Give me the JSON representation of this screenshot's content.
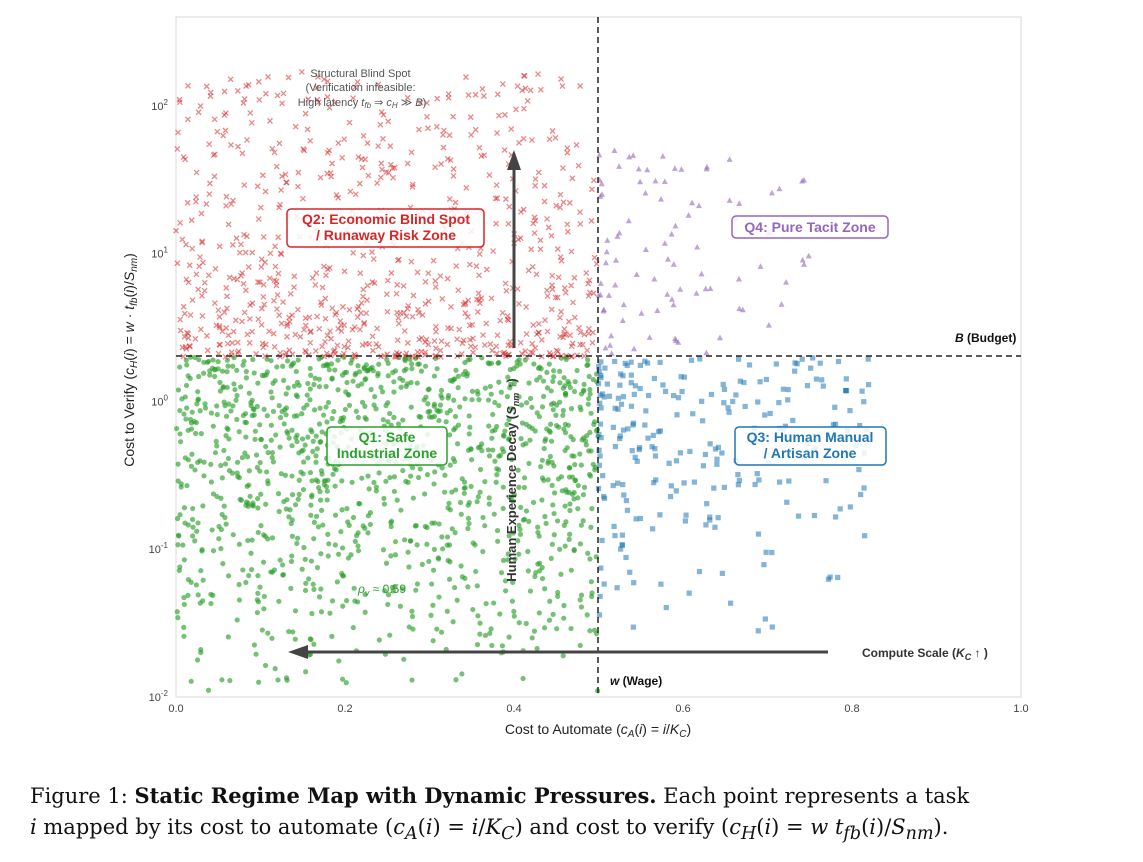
{
  "chart_data": {
    "type": "scatter",
    "xscale": "linear",
    "yscale": "log",
    "xlim": [
      0.0,
      1.0
    ],
    "ylim": [
      0.01,
      400
    ],
    "xlabel": "Cost to Automate (c_A(i) = i/K_C)",
    "ylabel": "Cost to Verify (c_H(i) = w · t_fb(i)/S_nm)",
    "x_ticks": [
      "0.0",
      "0.2",
      "0.4",
      "0.6",
      "0.8",
      "1.0"
    ],
    "y_ticks": [
      "10^-2",
      "10^-1",
      "10^0",
      "10^1",
      "10^2"
    ],
    "grid": false,
    "reference_lines": [
      {
        "orientation": "vertical",
        "x": 0.5,
        "label": "w (Wage)"
      },
      {
        "orientation": "horizontal",
        "y": 2.0,
        "label": "B (Budget)"
      }
    ],
    "zones": [
      {
        "label": "Q1: Safe Industrial Zone",
        "color": "#2ca02c"
      },
      {
        "label": "Q2: Economic Blind Spot / Runaway Risk Zone",
        "color": "#d62728"
      },
      {
        "label": "Q3: Human Manual / Artisan Zone",
        "color": "#1f77b4"
      },
      {
        "label": "Q4: Pure Tacit Zone",
        "color": "#9467bd"
      }
    ],
    "arrows": [
      {
        "label": "Human Experience Decay (S_nm ↑)",
        "direction": "up"
      },
      {
        "label": "Compute Scale (K_C ↑)",
        "direction": "left"
      }
    ],
    "annotations": [
      {
        "text": "Structural Blind Spot (Verification infeasible: High latency t_fb ⇒ c_H ≫ B)"
      },
      {
        "text": "ρ_v ≈ 0.59"
      }
    ],
    "series": [
      {
        "marker": "circle",
        "color": "#2ca02c",
        "x_range": [
          0.0,
          0.5
        ],
        "y_range": [
          0.01,
          2.0
        ],
        "count": 1200
      },
      {
        "marker": "x",
        "color": "#d62728",
        "x_range": [
          0.0,
          0.5
        ],
        "y_range": [
          2.0,
          170
        ],
        "count": 750
      },
      {
        "marker": "square",
        "color": "#1f77b4",
        "x_range": [
          0.5,
          0.82
        ],
        "y_range": [
          0.022,
          2.0
        ],
        "count": 240
      },
      {
        "marker": "triangle",
        "color": "#9467bd",
        "x_range": [
          0.5,
          0.75
        ],
        "y_range": [
          2.0,
          50
        ],
        "count": 90
      }
    ]
  },
  "labels": {
    "wage": "(Wage)",
    "budget": "(Budget)",
    "q1_line1": "Q1: Safe",
    "q1_line2": "Industrial Zone",
    "q2_line1": "Q2: Economic Blind Spot",
    "q2_line2": "/ Runaway Risk Zone",
    "q3_line1": "Q3: Human Manual",
    "q3_line2": "/ Artisan Zone",
    "q4": "Q4: Pure Tacit Zone",
    "blind1": "Structural Blind Spot",
    "blind2": "(Verification infeasible:",
    "blind3_pre": "High latency",
    "rho": "≈ 0.59",
    "human_decay": "Human Experience Decay",
    "compute_scale": "Compute Scale"
  },
  "caption": {
    "prefix": "Figure 1: ",
    "title": "Static Regime Map with Dynamic Pressures.",
    "text1": " Each point represents a task",
    "text2a": " mapped by its cost to automate (",
    "text2b": ") and cost to verify ("
  }
}
